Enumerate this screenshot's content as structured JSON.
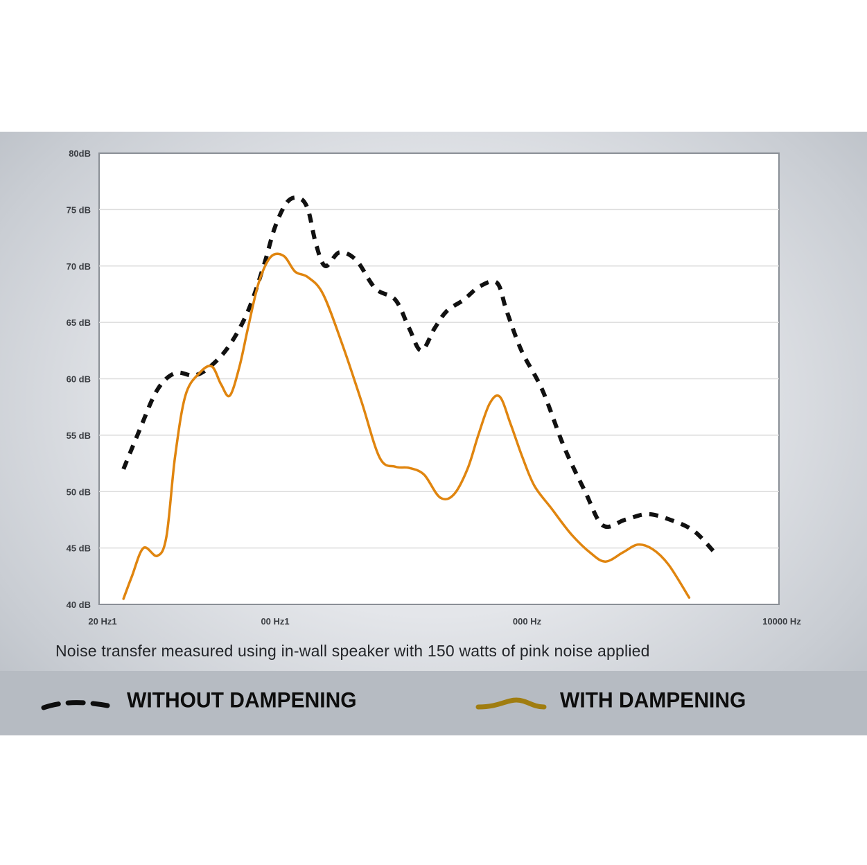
{
  "chart_data": {
    "type": "line",
    "caption": "Noise transfer measured using in-wall speaker with 150 watts of pink noise applied",
    "y_ticks": [
      "80dB",
      "75 dB",
      "70 dB",
      "65 dB",
      "60 dB",
      "55 dB",
      "50 dB",
      "45 dB",
      "40 dB"
    ],
    "x_ticks": [
      "20 Hz1",
      "00 Hz1",
      "000 Hz",
      "10000 Hz"
    ],
    "x_scale": "log",
    "x_range_hz": [
      20,
      10000
    ],
    "ylim": [
      40,
      80
    ],
    "grid": true,
    "legend_position": "bottom",
    "series": [
      {
        "name": "WITHOUT DAMPENING",
        "color": "#111111",
        "style": "dashed",
        "points": [
          [
            25,
            52
          ],
          [
            29,
            55.5
          ],
          [
            34,
            59
          ],
          [
            40,
            60.5
          ],
          [
            48,
            60.3
          ],
          [
            56,
            61.2
          ],
          [
            66,
            63
          ],
          [
            78,
            66
          ],
          [
            90,
            70
          ],
          [
            100,
            73.5
          ],
          [
            112,
            75.7
          ],
          [
            125,
            76
          ],
          [
            135,
            75
          ],
          [
            145,
            72
          ],
          [
            158,
            70
          ],
          [
            180,
            71.2
          ],
          [
            210,
            70.5
          ],
          [
            250,
            68
          ],
          [
            300,
            67
          ],
          [
            340,
            64.5
          ],
          [
            380,
            62.5
          ],
          [
            430,
            64.5
          ],
          [
            480,
            66
          ],
          [
            560,
            67
          ],
          [
            650,
            68.2
          ],
          [
            760,
            68.5
          ],
          [
            830,
            66
          ],
          [
            950,
            62.5
          ],
          [
            1150,
            59
          ],
          [
            1400,
            54
          ],
          [
            1700,
            50
          ],
          [
            2000,
            47
          ],
          [
            2450,
            47.5
          ],
          [
            3000,
            48
          ],
          [
            3700,
            47.5
          ],
          [
            4600,
            46.5
          ],
          [
            5600,
            44.5
          ]
        ]
      },
      {
        "name": "WITH DAMPENING",
        "color": "#e0850f",
        "style": "solid",
        "points": [
          [
            25,
            40.5
          ],
          [
            27,
            42.5
          ],
          [
            30,
            45
          ],
          [
            34,
            44.3
          ],
          [
            37,
            46
          ],
          [
            40,
            53
          ],
          [
            44,
            58.5
          ],
          [
            50,
            60.5
          ],
          [
            56,
            61.1
          ],
          [
            61,
            59.5
          ],
          [
            66,
            58.5
          ],
          [
            72,
            61
          ],
          [
            78,
            64.5
          ],
          [
            86,
            68.5
          ],
          [
            96,
            70.8
          ],
          [
            108,
            70.9
          ],
          [
            120,
            69.5
          ],
          [
            135,
            69
          ],
          [
            155,
            67.5
          ],
          [
            185,
            63
          ],
          [
            220,
            58
          ],
          [
            260,
            53
          ],
          [
            300,
            52.2
          ],
          [
            340,
            52.1
          ],
          [
            390,
            51.5
          ],
          [
            450,
            49.5
          ],
          [
            510,
            49.7
          ],
          [
            580,
            52
          ],
          [
            640,
            55
          ],
          [
            710,
            57.8
          ],
          [
            780,
            58.4
          ],
          [
            860,
            56
          ],
          [
            960,
            53
          ],
          [
            1070,
            50.5
          ],
          [
            1250,
            48.5
          ],
          [
            1500,
            46.2
          ],
          [
            1800,
            44.5
          ],
          [
            2050,
            43.8
          ],
          [
            2400,
            44.6
          ],
          [
            2750,
            45.3
          ],
          [
            3150,
            44.9
          ],
          [
            3650,
            43.5
          ],
          [
            4400,
            40.6
          ]
        ]
      }
    ]
  }
}
